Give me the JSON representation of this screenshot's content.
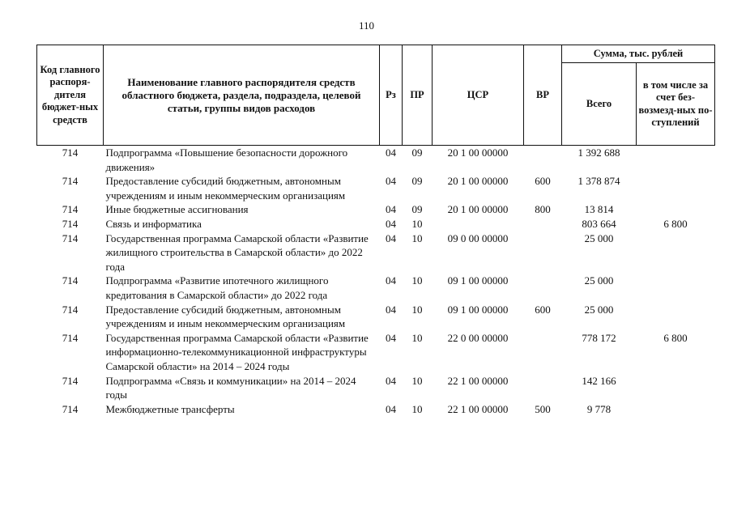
{
  "page_number": "110",
  "header": {
    "code": "Код главного распоря-дителя бюджет-ных средств",
    "name": "Наименование главного распорядителя средств областного бюджета, раздела, подраздела, целевой статьи, группы видов расходов",
    "rz": "Рз",
    "pr": "ПР",
    "csr": "ЦСР",
    "vr": "ВР",
    "sum": "Сумма, тыс. рублей",
    "total": "Всего",
    "incl": "в том числе за счет без-возмезд-ных по-ступлений"
  },
  "rows": [
    {
      "code": "714",
      "name": "Подпрограмма «Повышение безопасности дорожного движения»",
      "rz": "04",
      "pr": "09",
      "csr": "20 1 00 00000",
      "vr": "",
      "total": "1 392 688",
      "incl": ""
    },
    {
      "code": "714",
      "name": "Предоставление субсидий бюджетным, автономным учреждениям и иным некоммерческим организациям",
      "rz": "04",
      "pr": "09",
      "csr": "20 1 00 00000",
      "vr": "600",
      "total": "1 378 874",
      "incl": ""
    },
    {
      "code": "714",
      "name": "Иные бюджетные ассигнования",
      "rz": "04",
      "pr": "09",
      "csr": "20 1 00 00000",
      "vr": "800",
      "total": "13 814",
      "incl": ""
    },
    {
      "code": "714",
      "name": "Связь и информатика",
      "rz": "04",
      "pr": "10",
      "csr": "",
      "vr": "",
      "total": "803 664",
      "incl": "6 800"
    },
    {
      "code": "714",
      "name": "Государственная программа Самарской области «Развитие жилищного строительства в Самарской области» до 2022 года",
      "rz": "04",
      "pr": "10",
      "csr": "09 0 00 00000",
      "vr": "",
      "total": "25 000",
      "incl": ""
    },
    {
      "code": "714",
      "name": "Подпрограмма «Развитие ипотечного жилищного кредитования в Самарской области» до 2022 года",
      "rz": "04",
      "pr": "10",
      "csr": "09 1 00 00000",
      "vr": "",
      "total": "25 000",
      "incl": ""
    },
    {
      "code": "714",
      "name": "Предоставление субсидий бюджетным, автономным учреждениям и иным некоммерческим организациям",
      "rz": "04",
      "pr": "10",
      "csr": "09 1 00 00000",
      "vr": "600",
      "total": "25 000",
      "incl": ""
    },
    {
      "code": "714",
      "name": "Государственная программа Самарской области «Развитие информационно-телекоммуникационной инфраструктуры Самарской области» на 2014 – 2024 годы",
      "rz": "04",
      "pr": "10",
      "csr": "22 0 00 00000",
      "vr": "",
      "total": "778 172",
      "incl": "6 800"
    },
    {
      "code": "714",
      "name": "Подпрограмма «Связь и коммуникации» на 2014 – 2024 годы",
      "rz": "04",
      "pr": "10",
      "csr": "22 1 00 00000",
      "vr": "",
      "total": "142 166",
      "incl": ""
    },
    {
      "code": "714",
      "name": "Межбюджетные трансферты",
      "rz": "04",
      "pr": "10",
      "csr": "22 1 00 00000",
      "vr": "500",
      "total": "9 778",
      "incl": ""
    }
  ]
}
